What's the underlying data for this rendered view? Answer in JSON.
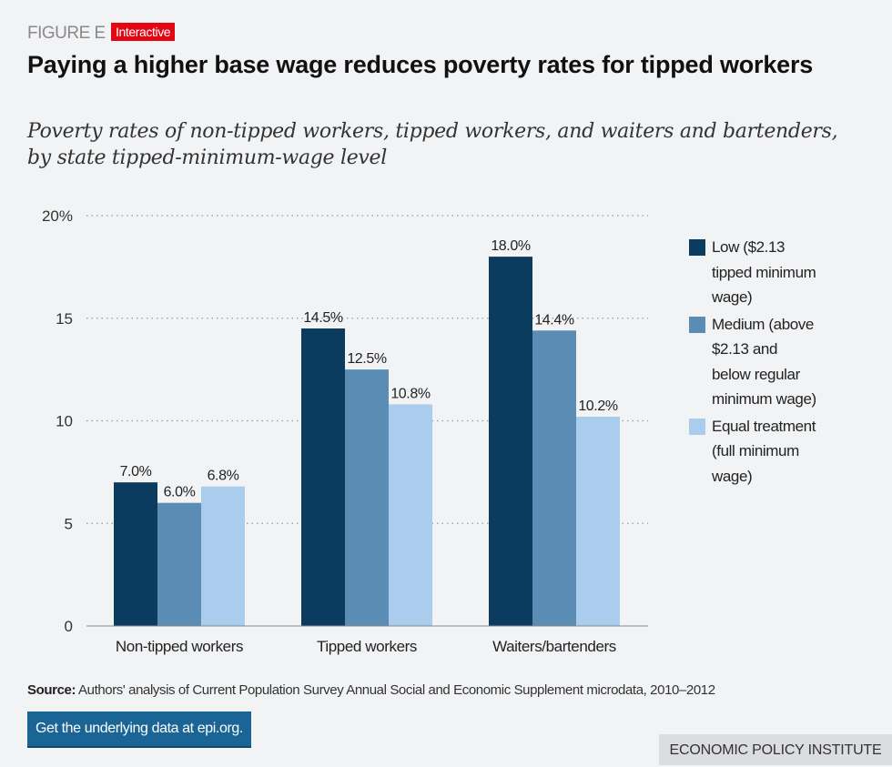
{
  "header": {
    "figure_label": "FIGURE E",
    "badge": "Interactive",
    "title": "Paying a higher base wage reduces poverty rates for tipped workers",
    "subtitle": "Poverty rates of non-tipped workers, tipped workers, and waiters and bartenders, by state tipped-minimum-wage level"
  },
  "chart_data": {
    "type": "bar",
    "categories": [
      "Non-tipped workers",
      "Tipped workers",
      "Waiters/bartenders"
    ],
    "series": [
      {
        "name": "Low ($2.13 tipped minimum wage)",
        "color": "#0b3b5e",
        "values": [
          7.0,
          14.5,
          18.0
        ],
        "labels": [
          "7.0%",
          "14.5%",
          "18.0%"
        ]
      },
      {
        "name": "Medium (above $2.13 and below regular minimum wage)",
        "color": "#5b8db4",
        "values": [
          6.0,
          12.5,
          14.4
        ],
        "labels": [
          "6.0%",
          "12.5%",
          "14.4%"
        ]
      },
      {
        "name": "Equal treatment (full minimum wage)",
        "color": "#aacdee",
        "values": [
          6.8,
          10.8,
          10.2
        ],
        "labels": [
          "6.8%",
          "10.8%",
          "10.2%"
        ]
      }
    ],
    "yticks": [
      "0",
      "5",
      "10",
      "15",
      "20%"
    ],
    "ytick_values": [
      0,
      5,
      10,
      15,
      20
    ],
    "ylim": [
      0,
      20
    ],
    "grid": "dotted horizontal",
    "legend_position": "right"
  },
  "footer": {
    "source_label": "Source:",
    "source_text": "Authors' analysis of Current Population Survey Annual Social and Economic Supplement microdata, 2010–2012",
    "data_button": "Get the underlying data at epi.org.",
    "brand": "ECONOMIC POLICY INSTITUTE"
  }
}
